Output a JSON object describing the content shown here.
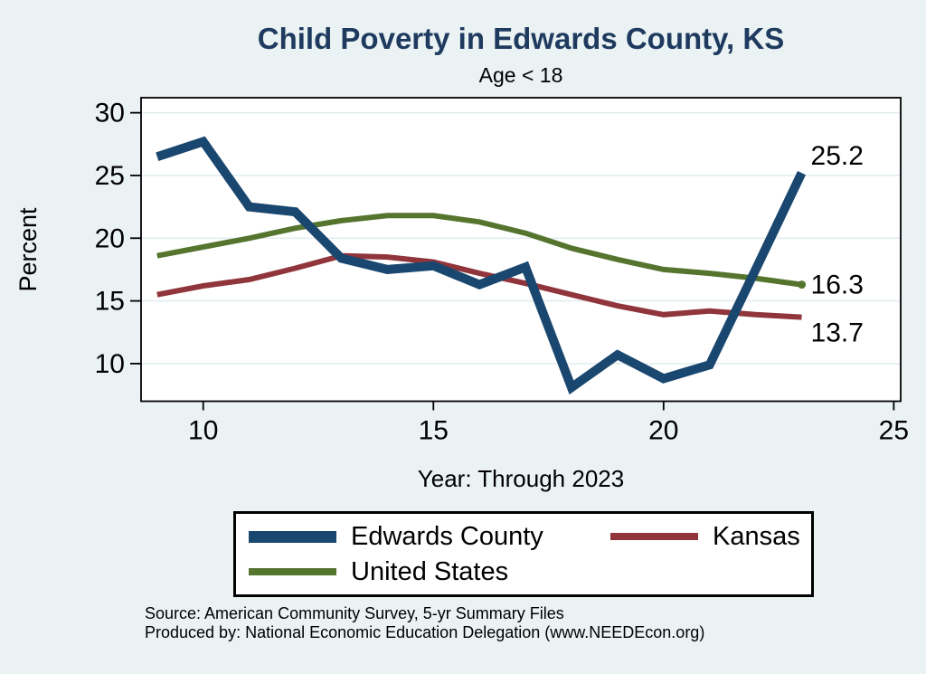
{
  "title": "Child Poverty in Edwards County, KS",
  "subtitle": "Age < 18",
  "colors": {
    "background": "#eaf2f3",
    "plot_background": "#ffffff",
    "grid": "#e2edf0",
    "axis": "#000000",
    "title": "#1f3a5f",
    "navy": "#1a476f",
    "maroon": "#90353b",
    "forest_green": "#55752f"
  },
  "chart_data": {
    "type": "line",
    "title": "Child Poverty in Edwards County, KS",
    "subtitle": "Age < 18",
    "xlabel": "Year: Through 2023",
    "ylabel": "Percent",
    "x": [
      9,
      10,
      11,
      12,
      13,
      14,
      15,
      16,
      17,
      18,
      19,
      20,
      21,
      22,
      23
    ],
    "x_ticks": [
      10,
      15,
      20,
      25
    ],
    "y_ticks": [
      10,
      15,
      20,
      25,
      30
    ],
    "xlim": [
      8.65,
      25.15
    ],
    "ylim": [
      7.0,
      31.2
    ],
    "grid": "horizontal",
    "legend_position": "bottom",
    "series": [
      {
        "name": "United States",
        "color": "#55752f",
        "stroke_width": 6,
        "values": [
          18.6,
          19.3,
          20.0,
          20.8,
          21.4,
          21.8,
          21.8,
          21.3,
          20.4,
          19.2,
          18.3,
          17.5,
          17.2,
          16.8,
          16.3
        ],
        "end_label": "16.3",
        "end_label_dy": 10,
        "end_marker": true
      },
      {
        "name": "Kansas",
        "color": "#90353b",
        "stroke_width": 6,
        "values": [
          15.5,
          16.2,
          16.7,
          17.6,
          18.6,
          18.5,
          18.1,
          17.2,
          16.4,
          15.5,
          14.6,
          13.9,
          14.2,
          13.9,
          13.7
        ],
        "end_label": "13.7",
        "end_label_dy": 27,
        "end_marker": false
      },
      {
        "name": "Edwards County",
        "color": "#1a476f",
        "stroke_width": 10,
        "values": [
          26.5,
          27.7,
          22.5,
          22.1,
          18.4,
          17.5,
          17.8,
          16.3,
          17.7,
          8.1,
          10.7,
          8.8,
          9.9,
          17.5,
          25.2
        ],
        "end_label": "25.2",
        "end_label_dy": -9,
        "end_marker": false
      }
    ]
  },
  "legend": {
    "items": [
      {
        "label": "Edwards County",
        "color": "#1a476f",
        "swatch_height": 13
      },
      {
        "label": "Kansas",
        "color": "#90353b",
        "swatch_height": 8
      },
      {
        "label": "United States",
        "color": "#55752f",
        "swatch_height": 8
      }
    ]
  },
  "source": {
    "line1": "Source: American Community Survey, 5-yr Summary Files",
    "line2": "Produced by: National Economic Education Delegation (www.NEEDEcon.org)"
  }
}
